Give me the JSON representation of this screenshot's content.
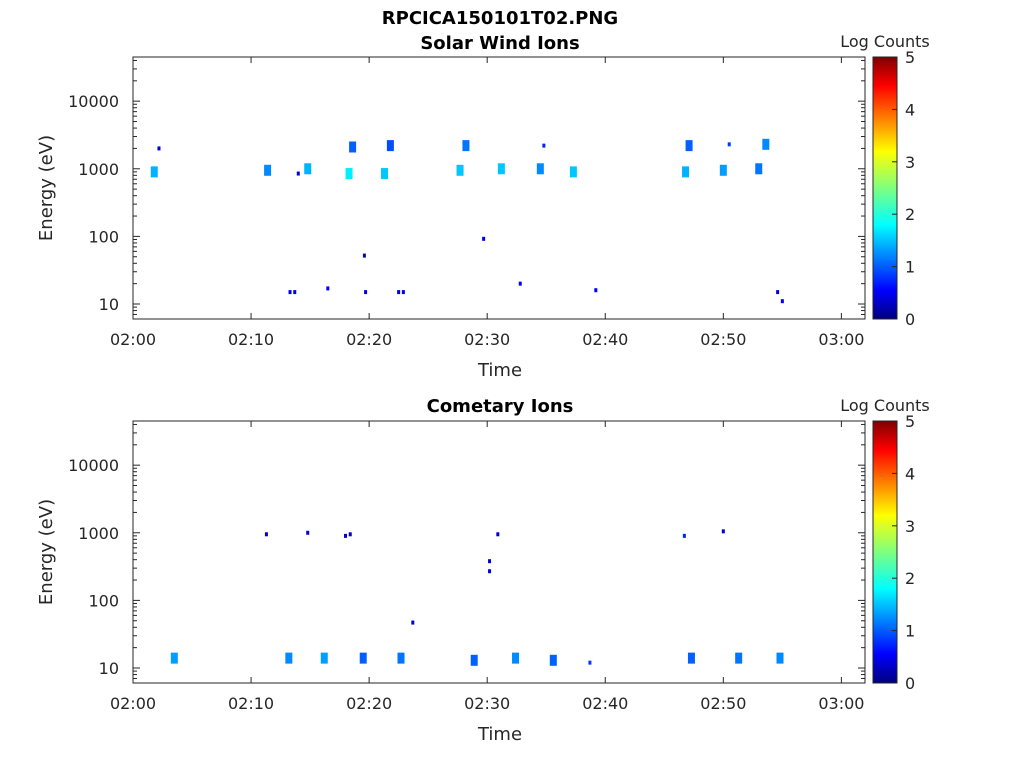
{
  "figure_title": "RPCICA150101T02.PNG",
  "chart_data": [
    {
      "type": "heatmap",
      "title": "Solar Wind Ions",
      "xlabel": "Time",
      "ylabel": "Energy (eV)",
      "y_scale": "log",
      "xlim_minutes": [
        0,
        62
      ],
      "ylim": [
        6,
        45000
      ],
      "xticks": [
        "02:00",
        "02:10",
        "02:20",
        "02:30",
        "02:40",
        "02:50",
        "03:00"
      ],
      "yticks": [
        "10",
        "100",
        "1000",
        "10000"
      ],
      "colorbar": {
        "label": "Log Counts",
        "range": [
          0,
          5
        ],
        "ticks": [
          "0",
          "1",
          "2",
          "3",
          "4",
          "5"
        ]
      },
      "points": [
        {
          "t": 1.8,
          "e": 900,
          "v": 1.5
        },
        {
          "t": 2.2,
          "e": 2000,
          "v": 0.4
        },
        {
          "t": 11.4,
          "e": 950,
          "v": 1.3
        },
        {
          "t": 14.0,
          "e": 850,
          "v": 0.5
        },
        {
          "t": 14.8,
          "e": 1000,
          "v": 1.5
        },
        {
          "t": 18.3,
          "e": 850,
          "v": 1.8
        },
        {
          "t": 18.6,
          "e": 2100,
          "v": 1.1
        },
        {
          "t": 21.3,
          "e": 850,
          "v": 1.6
        },
        {
          "t": 21.8,
          "e": 2200,
          "v": 1.0
        },
        {
          "t": 27.7,
          "e": 950,
          "v": 1.6
        },
        {
          "t": 28.2,
          "e": 2200,
          "v": 1.2
        },
        {
          "t": 31.2,
          "e": 1000,
          "v": 1.6
        },
        {
          "t": 34.5,
          "e": 1000,
          "v": 1.3
        },
        {
          "t": 34.8,
          "e": 2200,
          "v": 0.8
        },
        {
          "t": 37.3,
          "e": 900,
          "v": 1.6
        },
        {
          "t": 46.8,
          "e": 900,
          "v": 1.5
        },
        {
          "t": 47.1,
          "e": 2200,
          "v": 1.1
        },
        {
          "t": 50.0,
          "e": 950,
          "v": 1.4
        },
        {
          "t": 50.5,
          "e": 2300,
          "v": 0.9
        },
        {
          "t": 53.0,
          "e": 1000,
          "v": 1.2
        },
        {
          "t": 53.6,
          "e": 2300,
          "v": 1.3
        },
        {
          "t": 19.6,
          "e": 52,
          "v": 0.4
        },
        {
          "t": 29.7,
          "e": 92,
          "v": 0.4
        },
        {
          "t": 13.3,
          "e": 15,
          "v": 0.5
        },
        {
          "t": 13.7,
          "e": 15,
          "v": 0.5
        },
        {
          "t": 16.5,
          "e": 17,
          "v": 0.6
        },
        {
          "t": 19.7,
          "e": 15,
          "v": 0.5
        },
        {
          "t": 22.5,
          "e": 15,
          "v": 0.5
        },
        {
          "t": 22.9,
          "e": 15,
          "v": 0.5
        },
        {
          "t": 32.8,
          "e": 20,
          "v": 0.6
        },
        {
          "t": 39.2,
          "e": 16,
          "v": 0.6
        },
        {
          "t": 54.6,
          "e": 15,
          "v": 0.5
        },
        {
          "t": 55.0,
          "e": 11,
          "v": 0.6
        }
      ]
    },
    {
      "type": "heatmap",
      "title": "Cometary Ions",
      "xlabel": "Time",
      "ylabel": "Energy (eV)",
      "y_scale": "log",
      "xlim_minutes": [
        0,
        62
      ],
      "ylim": [
        6,
        45000
      ],
      "xticks": [
        "02:00",
        "02:10",
        "02:20",
        "02:30",
        "02:40",
        "02:50",
        "03:00"
      ],
      "yticks": [
        "10",
        "100",
        "1000",
        "10000"
      ],
      "colorbar": {
        "label": "Log Counts",
        "range": [
          0,
          5
        ],
        "ticks": [
          "0",
          "1",
          "2",
          "3",
          "4",
          "5"
        ]
      },
      "points": [
        {
          "t": 11.3,
          "e": 950,
          "v": 0.4
        },
        {
          "t": 14.8,
          "e": 1000,
          "v": 0.4
        },
        {
          "t": 18.0,
          "e": 900,
          "v": 0.4
        },
        {
          "t": 18.4,
          "e": 950,
          "v": 0.4
        },
        {
          "t": 30.2,
          "e": 380,
          "v": 0.4
        },
        {
          "t": 30.2,
          "e": 270,
          "v": 0.4
        },
        {
          "t": 30.9,
          "e": 950,
          "v": 0.4
        },
        {
          "t": 46.7,
          "e": 900,
          "v": 0.8
        },
        {
          "t": 50.0,
          "e": 1050,
          "v": 0.4
        },
        {
          "t": 23.7,
          "e": 47,
          "v": 0.4
        },
        {
          "t": 3.5,
          "e": 14,
          "v": 1.4
        },
        {
          "t": 13.2,
          "e": 14,
          "v": 1.3
        },
        {
          "t": 16.2,
          "e": 14,
          "v": 1.4
        },
        {
          "t": 19.5,
          "e": 14,
          "v": 1.1
        },
        {
          "t": 22.7,
          "e": 14,
          "v": 1.2
        },
        {
          "t": 28.9,
          "e": 13,
          "v": 1.1
        },
        {
          "t": 32.4,
          "e": 14,
          "v": 1.3
        },
        {
          "t": 35.6,
          "e": 13,
          "v": 1.1
        },
        {
          "t": 38.7,
          "e": 12,
          "v": 0.9
        },
        {
          "t": 47.3,
          "e": 14,
          "v": 1.1
        },
        {
          "t": 51.3,
          "e": 14,
          "v": 1.2
        },
        {
          "t": 54.8,
          "e": 14,
          "v": 1.3
        }
      ]
    }
  ]
}
